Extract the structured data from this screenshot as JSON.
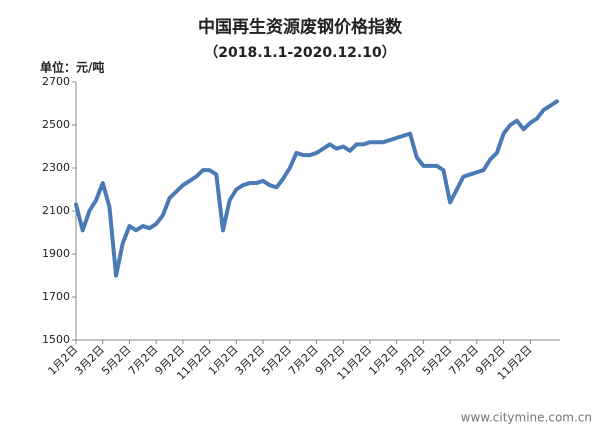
{
  "chart_data": {
    "type": "line",
    "title": "中国再生资源废钢价格指数",
    "subtitle": "（2018.1.1-2020.12.10）",
    "unit_label": "单位：元/吨",
    "categories": [
      "1月2日",
      null,
      null,
      null,
      "3月2日",
      null,
      null,
      null,
      "5月2日",
      null,
      null,
      null,
      "7月2日",
      null,
      null,
      null,
      "9月2日",
      null,
      null,
      null,
      "11月2日",
      null,
      null,
      null,
      "1月2日",
      null,
      null,
      null,
      "3月2日",
      null,
      null,
      null,
      "5月2日",
      null,
      null,
      null,
      "7月2日",
      null,
      null,
      null,
      "9月2日",
      null,
      null,
      null,
      "11月2日",
      null,
      null,
      null,
      "1月2日",
      null,
      null,
      null,
      "3月2日",
      null,
      null,
      null,
      "5月2日",
      null,
      null,
      null,
      "7月2日",
      null,
      null,
      null,
      "9月2日",
      null,
      null,
      null,
      "11月2日",
      null,
      null,
      null,
      null
    ],
    "values": [
      2130,
      2010,
      2100,
      2150,
      2230,
      2120,
      1800,
      1950,
      2030,
      2010,
      2030,
      2020,
      2040,
      2080,
      2160,
      2190,
      2220,
      2240,
      2260,
      2290,
      2290,
      2270,
      2010,
      2150,
      2200,
      2220,
      2230,
      2230,
      2240,
      2220,
      2210,
      2250,
      2300,
      2370,
      2360,
      2360,
      2370,
      2390,
      2410,
      2390,
      2400,
      2380,
      2410,
      2410,
      2420,
      2420,
      2420,
      2430,
      2440,
      2450,
      2460,
      2350,
      2310,
      2310,
      2310,
      2290,
      2140,
      2200,
      2260,
      2270,
      2280,
      2290,
      2340,
      2370,
      2460,
      2500,
      2520,
      2480,
      2510,
      2530,
      2570,
      2590,
      2610
    ],
    "color": "#4a7ab5",
    "ylim": [
      1500,
      2700
    ],
    "yticks": [
      1500,
      1700,
      1900,
      2100,
      2300,
      2500,
      2700
    ],
    "grid": false
  },
  "watermark": "www.citymine.com.cn"
}
